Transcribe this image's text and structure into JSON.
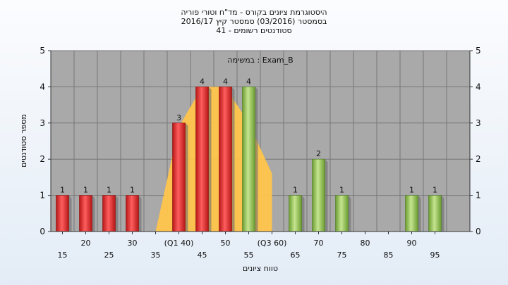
{
  "title_lines": [
    "היסטוגרמת ציונים בקורס - מד\"ח וטורי פוריה",
    "בסמסטר  (03/2016)  סמסטר קיץ 2016/17",
    "סטודנטים רשומים - 41"
  ],
  "chart_data": {
    "type": "bar",
    "xlabel": "טווח ציונים",
    "ylabel": "מספר סטודנטים",
    "annotation": "במשימה : Exam_B",
    "ylim": [
      0,
      5
    ],
    "yticks": [
      0,
      1,
      2,
      3,
      4,
      5
    ],
    "grid": true,
    "bins": [
      15,
      20,
      25,
      30,
      35,
      40,
      45,
      50,
      55,
      60,
      65,
      70,
      75,
      80,
      85,
      90,
      95
    ],
    "tick_labels": [
      "15",
      "20",
      "25",
      "30",
      "35",
      "(Q1 40)",
      "45",
      "50",
      "55",
      "(Q3 60)",
      "65",
      "70",
      "75",
      "80",
      "85",
      "90",
      "95"
    ],
    "values": [
      1,
      1,
      1,
      1,
      0,
      3,
      4,
      4,
      4,
      0,
      1,
      2,
      1,
      0,
      0,
      1,
      1
    ],
    "bar_colors": [
      "red",
      "red",
      "red",
      "red",
      "none",
      "red",
      "red",
      "red",
      "green",
      "none",
      "green",
      "green",
      "green",
      "none",
      "none",
      "green",
      "green"
    ],
    "data_labels": [
      "1",
      "1",
      "1",
      "1",
      "",
      "3",
      "4",
      "4",
      "4",
      "",
      "1",
      "2",
      "1",
      "",
      "",
      "1",
      "1"
    ],
    "quartile_markers": {
      "Q1": 40,
      "Q3": 60
    },
    "distribution_shape": {
      "x": [
        35,
        40,
        45,
        50,
        55,
        60
      ],
      "y": [
        0,
        2.9,
        4.0,
        4.0,
        3.0,
        1.6
      ]
    },
    "colors": {
      "plot_bg": "#a9a9a9",
      "red": "#e52a2a",
      "green": "#8cc249",
      "distribution": "#ffc44a"
    }
  }
}
